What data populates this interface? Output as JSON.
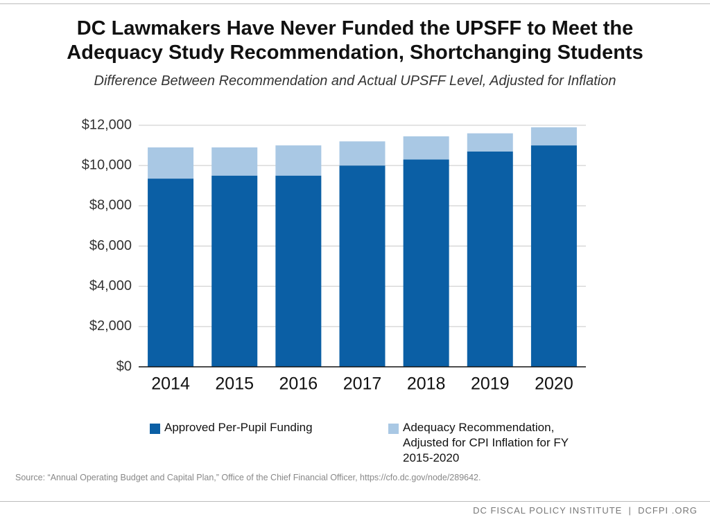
{
  "chart_data": {
    "type": "stacked_bar",
    "title": "DC Lawmakers Have Never Funded the UPSFF to Meet the Adequacy Study Recommendation, Shortchanging Students",
    "subtitle": "Difference Between Recommendation and Actual UPSFF Level, Adjusted for Inflation",
    "categories": [
      "2014",
      "2015",
      "2016",
      "2017",
      "2018",
      "2019",
      "2020"
    ],
    "series": [
      {
        "name": "Approved Per-Pupil Funding",
        "color": "#0b5fa5",
        "values": [
          9350,
          9500,
          9500,
          10000,
          10300,
          10700,
          11000
        ]
      },
      {
        "name": "Adequacy Recommendation, Adjusted for CPI Inflation for FY 2015-2020",
        "color": "#a9c8e4",
        "values": [
          1550,
          1400,
          1500,
          1200,
          1150,
          900,
          900
        ]
      }
    ],
    "ylim": [
      0,
      12000
    ],
    "yticks": [
      {
        "value": 0,
        "label": "$0"
      },
      {
        "value": 2000,
        "label": "$2,000"
      },
      {
        "value": 4000,
        "label": "$4,000"
      },
      {
        "value": 6000,
        "label": "$6,000"
      },
      {
        "value": 8000,
        "label": "$8,000"
      },
      {
        "value": 10000,
        "label": "$10,000"
      },
      {
        "value": 12000,
        "label": "$12,000"
      }
    ],
    "grid": true,
    "source": "Source: “Annual Operating Budget and Capital Plan,” Office of the Chief Financial Officer, https://cfo.dc.gov/node/289642.",
    "footer": "DC FISCAL POLICY INSTITUTE  |  DCFPI .ORG"
  }
}
